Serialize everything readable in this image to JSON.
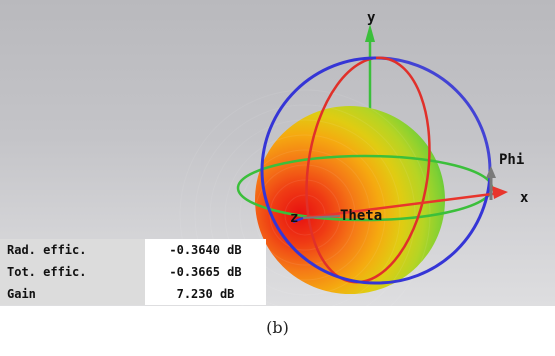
{
  "axes": {
    "x": "x",
    "y": "y",
    "phi": "Phi",
    "theta": "Theta"
  },
  "metrics": [
    {
      "label": "Rad. effic.",
      "value": "-0.3640 dB"
    },
    {
      "label": "Tot. effic.",
      "value": "-0.3665 dB"
    },
    {
      "label": "Gain",
      "value": "7.230 dB"
    }
  ],
  "caption": "(b)",
  "colors": {
    "x_axis": "#e8352c",
    "y_axis": "#3bbf3b",
    "phi_arrow": "#7a7a7a",
    "blue_ring": "#3535d6",
    "pattern_max": "#e81010",
    "pattern_mid": "#f5a000",
    "pattern_min": "#3fc83f"
  }
}
